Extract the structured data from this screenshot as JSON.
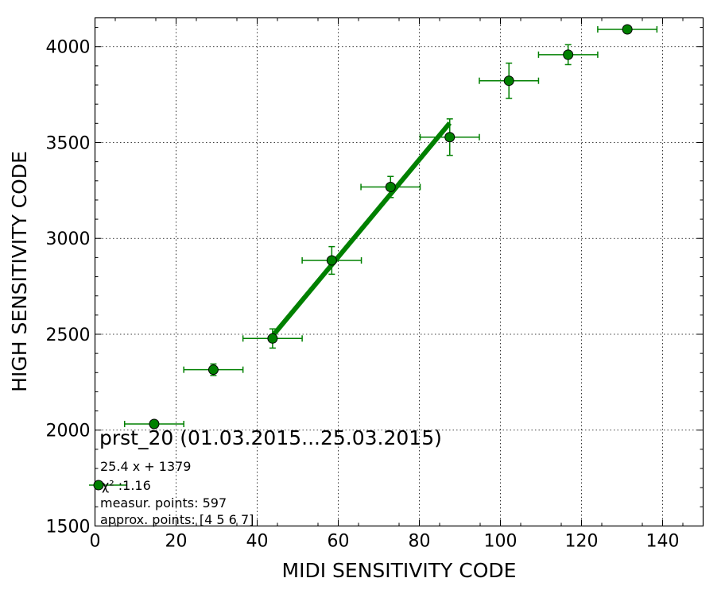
{
  "chart_data": {
    "type": "scatter",
    "title": "prst_20 (01.03.2015...25.03.2015)",
    "xlabel": "MIDI SENSITIVITY CODE",
    "ylabel": "HIGH SENSITIVITY CODE",
    "xlim": [
      0,
      150
    ],
    "ylim": [
      1500,
      4150
    ],
    "xticks": [
      "0",
      "20",
      "40",
      "60",
      "80",
      "100",
      "120",
      "140"
    ],
    "yticks": [
      "1500",
      "2000",
      "2500",
      "3000",
      "3500",
      "4000"
    ],
    "grid": true,
    "colors": {
      "series": "#008000",
      "marker_edge": "#000000"
    },
    "series": [
      {
        "marker": "circle",
        "points": [
          {
            "x": 14.6,
            "y": 2032,
            "xerr": 7.3,
            "yerr": 8
          },
          {
            "x": 29.2,
            "y": 2315,
            "xerr": 7.3,
            "yerr": 30
          },
          {
            "x": 43.8,
            "y": 2478,
            "xerr": 7.3,
            "yerr": 50
          },
          {
            "x": 58.4,
            "y": 2885,
            "xerr": 7.3,
            "yerr": 72
          },
          {
            "x": 72.9,
            "y": 3268,
            "xerr": 7.3,
            "yerr": 55
          },
          {
            "x": 87.5,
            "y": 3528,
            "xerr": 7.3,
            "yerr": 95
          },
          {
            "x": 102.1,
            "y": 3822,
            "xerr": 7.3,
            "yerr": 92
          },
          {
            "x": 116.7,
            "y": 3958,
            "xerr": 7.3,
            "yerr": 52
          },
          {
            "x": 131.3,
            "y": 4090,
            "xerr": 7.3,
            "yerr": 0
          }
        ]
      }
    ],
    "fit": {
      "slope": 25.4,
      "intercept": 1379,
      "x_start": 43.8,
      "x_end": 87.5
    },
    "annotations": {
      "equation": "25.4 x + 1379",
      "chi2": "χ² :1.16",
      "measur_points": "measur. points: 597",
      "approx_points": "approx. points: [4 5 6 7]"
    }
  }
}
